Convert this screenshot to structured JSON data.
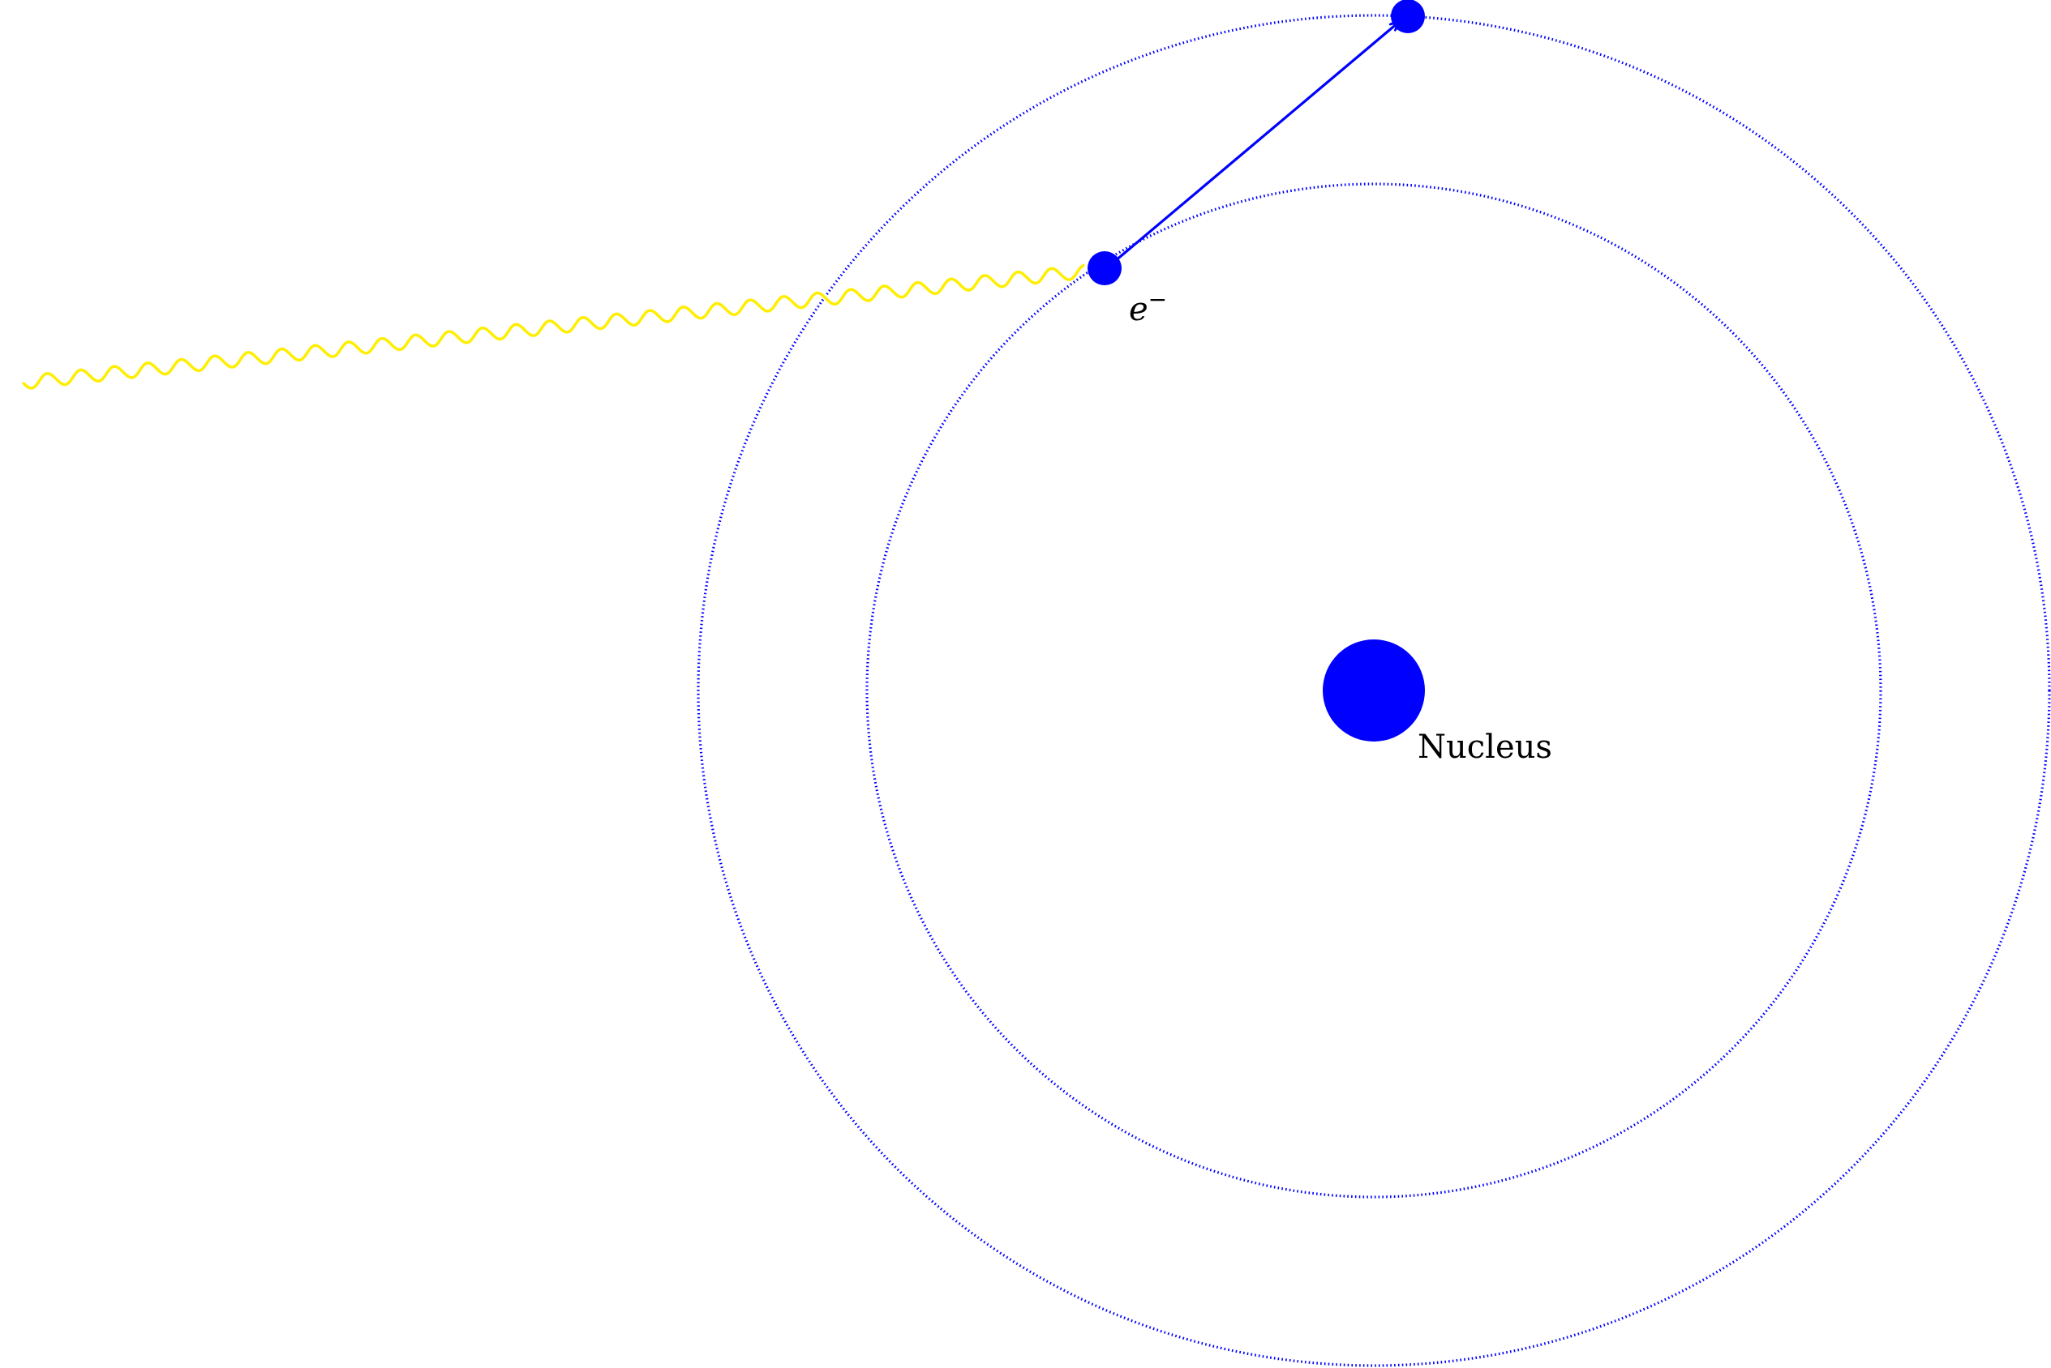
{
  "diagram": {
    "nucleus_label": "Nucleus",
    "electron_label_base": "e",
    "electron_label_sup": "−",
    "colors": {
      "orbit": "#0000ff",
      "nucleus": "#0000ff",
      "electron": "#0000ff",
      "arrow": "#0000ff",
      "photon": "#ffee00",
      "text": "#000000",
      "background": "#ffffff"
    },
    "components": [
      "photon-wave",
      "inner-orbit",
      "outer-orbit",
      "nucleus",
      "electron-ground",
      "electron-excited",
      "transition-arrow"
    ]
  }
}
